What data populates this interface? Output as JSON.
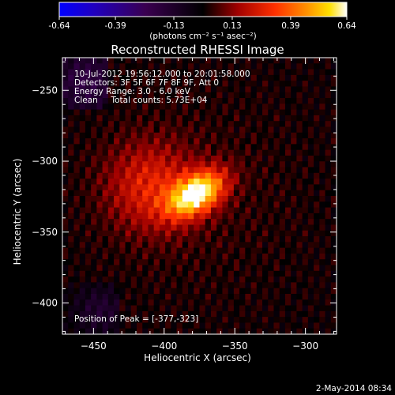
{
  "chart_data": {
    "type": "heatmap",
    "title": "Reconstructed RHESSI Image",
    "xlabel": "Heliocentric X (arcsec)",
    "ylabel": "Heliocentric Y (arcsec)",
    "xlim": [
      -472,
      -278
    ],
    "ylim": [
      -422,
      -227
    ],
    "x_ticks": [
      -450,
      -400,
      -350,
      -300
    ],
    "y_ticks": [
      -250,
      -300,
      -350,
      -400
    ],
    "colorbar": {
      "min": -0.64,
      "max": 0.64,
      "ticks": [
        -0.64,
        -0.39,
        -0.13,
        0.13,
        0.39,
        0.64
      ],
      "tick_labels": [
        "-0.64",
        "-0.39",
        "-0.13",
        "0.13",
        "0.39",
        "0.64"
      ],
      "unit_label": "(photons cm⁻² s⁻¹ asec⁻²)"
    },
    "peak": {
      "x": -377,
      "y": -323,
      "value": 0.64
    },
    "annotations": [
      "10-Jul-2012 19:56:12.000 to 20:01:58.000",
      "Detectors: 3F 5F 6F 7F 8F 9F, Att 0",
      "Energy Range: 3.0 - 6.0 keV",
      "Clean     Total counts: 5.73E+04"
    ],
    "peak_label": "Position of Peak = [-377,-323]",
    "timestamp": "2-May-2014 08:34"
  }
}
